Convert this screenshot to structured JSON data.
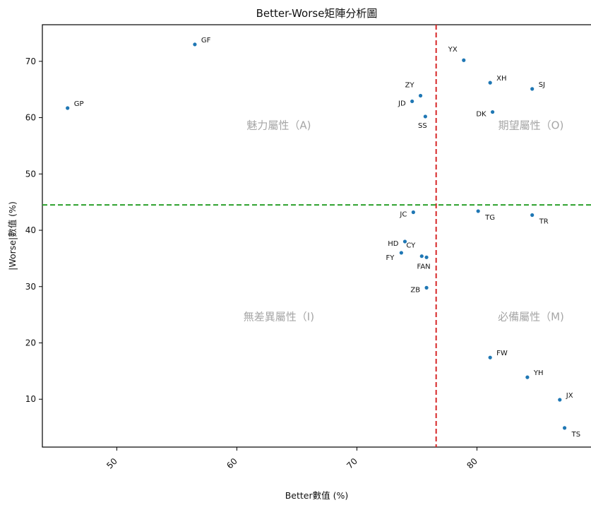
{
  "chart_data": {
    "type": "scatter",
    "title": "Better-Worse矩陣分析圖",
    "xlabel": "Better數值 (%)",
    "ylabel": "|Worse|數值 (%)",
    "xlim": [
      43.8,
      89.5
    ],
    "ylim": [
      1.5,
      76.5
    ],
    "xticks": [
      50,
      60,
      70,
      80
    ],
    "yticks": [
      10,
      20,
      30,
      40,
      50,
      60,
      70
    ],
    "xtick_rotation": 45,
    "grid": false,
    "legend": "none",
    "point_color": "#1f77b4",
    "reference_lines": [
      {
        "orientation": "vertical",
        "value": 76.6,
        "color": "#d62728",
        "style": "dashed"
      },
      {
        "orientation": "horizontal",
        "value": 44.5,
        "color": "#2ca02c",
        "style": "dashed"
      }
    ],
    "quadrant_labels": [
      {
        "text": "魅力屬性（A)",
        "x": 63.5,
        "y": 58
      },
      {
        "text": "期望屬性（O)",
        "x": 84.5,
        "y": 58
      },
      {
        "text": "無差異屬性（I)",
        "x": 63.5,
        "y": 24
      },
      {
        "text": "必備屬性（M)",
        "x": 84.5,
        "y": 24
      }
    ],
    "points": [
      {
        "label": "GF",
        "x": 56.5,
        "y": 73.0,
        "anchor": "ur"
      },
      {
        "label": "GP",
        "x": 45.9,
        "y": 61.7,
        "anchor": "ur"
      },
      {
        "label": "YX",
        "x": 78.9,
        "y": 70.2,
        "anchor": "ul"
      },
      {
        "label": "XH",
        "x": 81.1,
        "y": 66.2,
        "anchor": "ur"
      },
      {
        "label": "SJ",
        "x": 84.6,
        "y": 65.1,
        "anchor": "ur"
      },
      {
        "label": "ZY",
        "x": 75.3,
        "y": 63.9,
        "anchor": "ul"
      },
      {
        "label": "JD",
        "x": 74.6,
        "y": 62.9,
        "anchor": "l"
      },
      {
        "label": "SS",
        "x": 75.7,
        "y": 60.2,
        "anchor": "b"
      },
      {
        "label": "DK",
        "x": 81.3,
        "y": 61.0,
        "anchor": "l"
      },
      {
        "label": "JC",
        "x": 74.7,
        "y": 43.2,
        "anchor": "l"
      },
      {
        "label": "TG",
        "x": 80.1,
        "y": 43.4,
        "anchor": "br"
      },
      {
        "label": "TR",
        "x": 84.6,
        "y": 42.7,
        "anchor": "br"
      },
      {
        "label": "HD",
        "x": 74.0,
        "y": 38.0,
        "anchor": "l"
      },
      {
        "label": "CY",
        "x": 75.4,
        "y": 35.4,
        "anchor": "ul"
      },
      {
        "label": "FY",
        "x": 73.7,
        "y": 36.0,
        "anchor": "bl"
      },
      {
        "label": "FAN",
        "x": 75.8,
        "y": 35.2,
        "anchor": "b"
      },
      {
        "label": "ZB",
        "x": 75.8,
        "y": 29.8,
        "anchor": "l"
      },
      {
        "label": "FW",
        "x": 81.1,
        "y": 17.4,
        "anchor": "ur"
      },
      {
        "label": "YH",
        "x": 84.2,
        "y": 13.9,
        "anchor": "ur"
      },
      {
        "label": "JX",
        "x": 86.9,
        "y": 9.9,
        "anchor": "ur"
      },
      {
        "label": "TS",
        "x": 87.3,
        "y": 4.9,
        "anchor": "br"
      }
    ]
  }
}
